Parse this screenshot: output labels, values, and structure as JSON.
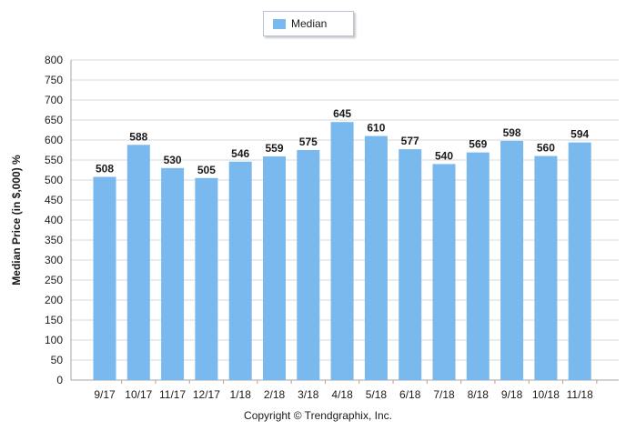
{
  "legend": {
    "label": "Median",
    "swatch_color": "#7ab9ee"
  },
  "footer": {
    "copyright": "Copyright © Trendgraphix, Inc."
  },
  "chart_data": {
    "type": "bar",
    "title": "",
    "xlabel": "",
    "ylabel": "Median Price (in $,000) %",
    "ylim": [
      0,
      800
    ],
    "yticks": [
      0,
      50,
      100,
      150,
      200,
      250,
      300,
      350,
      400,
      450,
      500,
      550,
      600,
      650,
      700,
      750,
      800
    ],
    "grid": true,
    "legend_position": "top-center",
    "categories": [
      "9/17",
      "10/17",
      "11/17",
      "12/17",
      "1/18",
      "2/18",
      "3/18",
      "4/18",
      "5/18",
      "6/18",
      "7/18",
      "8/18",
      "9/18",
      "10/18",
      "11/18"
    ],
    "series": [
      {
        "name": "Median",
        "color": "#7ab9ee",
        "values": [
          508,
          588,
          530,
          505,
          546,
          559,
          575,
          645,
          610,
          577,
          540,
          569,
          598,
          560,
          594
        ]
      }
    ]
  }
}
